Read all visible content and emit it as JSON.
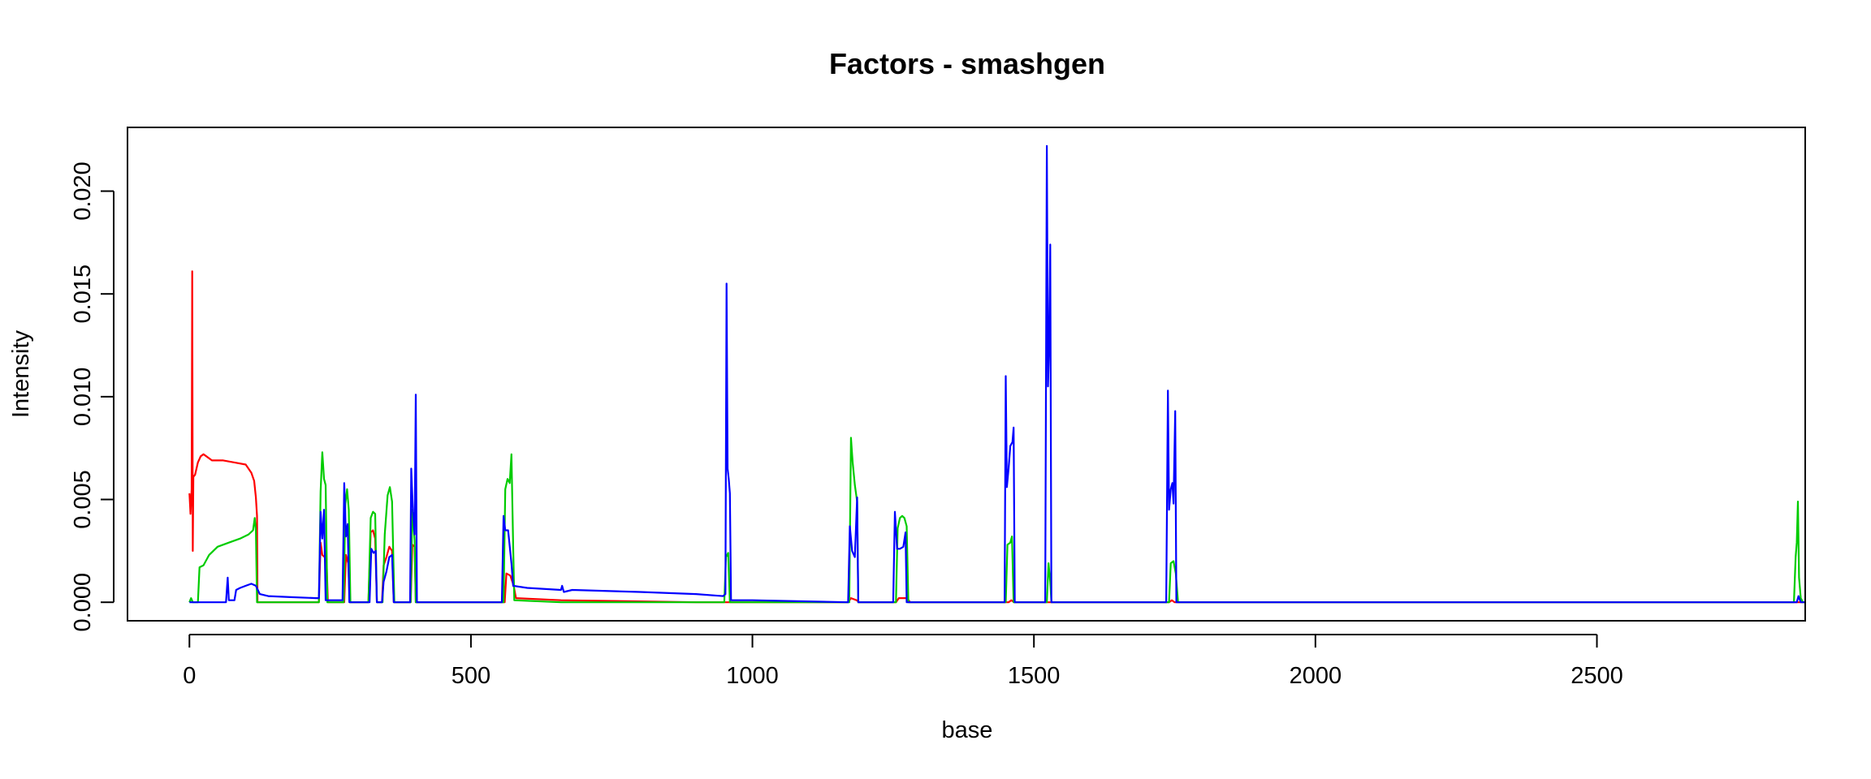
{
  "chart_data": {
    "type": "line",
    "title": "Factors - smashgen",
    "xlabel": "base",
    "ylabel": "Intensity",
    "xlim": [
      -110,
      2870
    ],
    "ylim": [
      -0.0009,
      0.0231
    ],
    "xticks": [
      0,
      500,
      1000,
      1500,
      2000,
      2500
    ],
    "xtick_labels": [
      "0",
      "500",
      "1000",
      "1500",
      "2000",
      "2500"
    ],
    "yticks": [
      0.0,
      0.005,
      0.01,
      0.015,
      0.02
    ],
    "ytick_labels": [
      "0.000",
      "0.005",
      "0.010",
      "0.015",
      "0.020"
    ],
    "grid": false,
    "legend": "none",
    "series": [
      {
        "color": "#ff0000",
        "points": [
          [
            0,
            0.0053
          ],
          [
            2,
            0.0043
          ],
          [
            4,
            0.0055
          ],
          [
            5,
            0.0161
          ],
          [
            6,
            0.0025
          ],
          [
            7,
            0.0061
          ],
          [
            10,
            0.0062
          ],
          [
            15,
            0.0068
          ],
          [
            20,
            0.0071
          ],
          [
            25,
            0.0072
          ],
          [
            30,
            0.0071
          ],
          [
            40,
            0.0069
          ],
          [
            60,
            0.0069
          ],
          [
            80,
            0.0068
          ],
          [
            100,
            0.0067
          ],
          [
            110,
            0.0063
          ],
          [
            115,
            0.0059
          ],
          [
            118,
            0.0051
          ],
          [
            120,
            0.0042
          ],
          [
            121,
            0.0
          ],
          [
            230,
            0.0
          ],
          [
            233,
            0.0029
          ],
          [
            236,
            0.0023
          ],
          [
            240,
            0.0022
          ],
          [
            243,
            0.0025
          ],
          [
            246,
            0.0
          ],
          [
            275,
            0.0
          ],
          [
            278,
            0.0023
          ],
          [
            282,
            0.0019
          ],
          [
            285,
            0.0
          ],
          [
            318,
            0.0
          ],
          [
            322,
            0.0034
          ],
          [
            326,
            0.0035
          ],
          [
            330,
            0.0031
          ],
          [
            333,
            0.0
          ],
          [
            342,
            0.0
          ],
          [
            345,
            0.0018
          ],
          [
            350,
            0.0022
          ],
          [
            355,
            0.0027
          ],
          [
            360,
            0.0025
          ],
          [
            363,
            0.0
          ],
          [
            393,
            0.0
          ],
          [
            396,
            0.0028
          ],
          [
            400,
            0.0027
          ],
          [
            402,
            0.0
          ],
          [
            560,
            0.0
          ],
          [
            563,
            0.0014
          ],
          [
            570,
            0.0013
          ],
          [
            576,
            0.0008
          ],
          [
            580,
            0.0002
          ],
          [
            660,
            0.0001
          ],
          [
            900,
            0.0
          ],
          [
            1170,
            0.0
          ],
          [
            1175,
            0.0002
          ],
          [
            1185,
            0.0001
          ],
          [
            1190,
            0.0
          ],
          [
            1255,
            0.0
          ],
          [
            1260,
            0.0002
          ],
          [
            1275,
            0.0002
          ],
          [
            1280,
            0.0
          ],
          [
            1455,
            0.0
          ],
          [
            1460,
            0.0001
          ],
          [
            1465,
            0.0
          ],
          [
            1740,
            0.0
          ],
          [
            1745,
            0.0001
          ],
          [
            1750,
            0.0
          ],
          [
            2870,
            0.0
          ]
        ]
      },
      {
        "color": "#00cc00",
        "points": [
          [
            0,
            0.0
          ],
          [
            3,
            0.0002
          ],
          [
            6,
            0.0
          ],
          [
            15,
            0.0
          ],
          [
            18,
            0.0017
          ],
          [
            25,
            0.0018
          ],
          [
            35,
            0.0023
          ],
          [
            50,
            0.0027
          ],
          [
            70,
            0.0029
          ],
          [
            90,
            0.0031
          ],
          [
            105,
            0.0033
          ],
          [
            113,
            0.0035
          ],
          [
            116,
            0.0041
          ],
          [
            118,
            0.0035
          ],
          [
            120,
            0.0
          ],
          [
            230,
            0.0
          ],
          [
            233,
            0.0054
          ],
          [
            236,
            0.0073
          ],
          [
            239,
            0.006
          ],
          [
            242,
            0.0057
          ],
          [
            245,
            0.0
          ],
          [
            274,
            0.0
          ],
          [
            277,
            0.0048
          ],
          [
            280,
            0.0055
          ],
          [
            283,
            0.0045
          ],
          [
            286,
            0.0
          ],
          [
            318,
            0.0
          ],
          [
            322,
            0.0041
          ],
          [
            326,
            0.0044
          ],
          [
            330,
            0.0043
          ],
          [
            333,
            0.0
          ],
          [
            343,
            0.0
          ],
          [
            347,
            0.0033
          ],
          [
            352,
            0.0052
          ],
          [
            356,
            0.0056
          ],
          [
            360,
            0.0049
          ],
          [
            364,
            0.0
          ],
          [
            393,
            0.0
          ],
          [
            396,
            0.0045
          ],
          [
            400,
            0.003
          ],
          [
            402,
            0.0
          ],
          [
            558,
            0.0
          ],
          [
            561,
            0.0055
          ],
          [
            565,
            0.006
          ],
          [
            569,
            0.0058
          ],
          [
            572,
            0.0072
          ],
          [
            575,
            0.0028
          ],
          [
            577,
            0.0001
          ],
          [
            660,
            0.0
          ],
          [
            950,
            0.0
          ],
          [
            953,
            0.0022
          ],
          [
            957,
            0.0024
          ],
          [
            960,
            0.0
          ],
          [
            1172,
            0.0
          ],
          [
            1175,
            0.008
          ],
          [
            1178,
            0.0068
          ],
          [
            1182,
            0.0057
          ],
          [
            1186,
            0.0049
          ],
          [
            1188,
            0.0
          ],
          [
            1255,
            0.0
          ],
          [
            1258,
            0.0036
          ],
          [
            1262,
            0.0041
          ],
          [
            1266,
            0.0042
          ],
          [
            1270,
            0.0041
          ],
          [
            1274,
            0.0037
          ],
          [
            1277,
            0.0
          ],
          [
            1450,
            0.0
          ],
          [
            1453,
            0.0028
          ],
          [
            1458,
            0.0029
          ],
          [
            1461,
            0.0032
          ],
          [
            1464,
            0.0
          ],
          [
            1523,
            0.0
          ],
          [
            1526,
            0.0019
          ],
          [
            1529,
            0.001
          ],
          [
            1531,
            0.0
          ],
          [
            1740,
            0.0
          ],
          [
            1743,
            0.0019
          ],
          [
            1748,
            0.002
          ],
          [
            1752,
            0.0014
          ],
          [
            1756,
            0.0
          ],
          [
            2850,
            0.0
          ],
          [
            2853,
            0.0022
          ],
          [
            2855,
            0.0029
          ],
          [
            2857,
            0.0049
          ],
          [
            2859,
            0.0012
          ],
          [
            2862,
            0.0002
          ],
          [
            2866,
            0.0
          ],
          [
            2870,
            0.0
          ]
        ]
      },
      {
        "color": "#0000ff",
        "points": [
          [
            0,
            0.0
          ],
          [
            65,
            0.0
          ],
          [
            68,
            0.0012
          ],
          [
            70,
            0.0001
          ],
          [
            80,
            0.0001
          ],
          [
            83,
            0.0006
          ],
          [
            90,
            0.0007
          ],
          [
            100,
            0.0008
          ],
          [
            110,
            0.0009
          ],
          [
            118,
            0.0008
          ],
          [
            125,
            0.0004
          ],
          [
            140,
            0.0003
          ],
          [
            180,
            0.00025
          ],
          [
            225,
            0.0002
          ],
          [
            230,
            0.0002
          ],
          [
            233,
            0.0044
          ],
          [
            236,
            0.0031
          ],
          [
            239,
            0.0045
          ],
          [
            242,
            0.0001
          ],
          [
            272,
            0.0001
          ],
          [
            275,
            0.0058
          ],
          [
            278,
            0.0032
          ],
          [
            281,
            0.0038
          ],
          [
            284,
            0.0
          ],
          [
            320,
            0.0
          ],
          [
            323,
            0.0026
          ],
          [
            327,
            0.0024
          ],
          [
            331,
            0.0025
          ],
          [
            333,
            0.0
          ],
          [
            342,
            0.0
          ],
          [
            345,
            0.001
          ],
          [
            350,
            0.0015
          ],
          [
            355,
            0.0022
          ],
          [
            360,
            0.0023
          ],
          [
            363,
            0.0
          ],
          [
            392,
            0.0
          ],
          [
            394,
            0.0065
          ],
          [
            397,
            0.0044
          ],
          [
            400,
            0.0033
          ],
          [
            402,
            0.0101
          ],
          [
            404,
            0.0
          ],
          [
            430,
            0.0
          ],
          [
            555,
            0.0
          ],
          [
            558,
            0.0042
          ],
          [
            561,
            0.0035
          ],
          [
            566,
            0.0035
          ],
          [
            572,
            0.0019
          ],
          [
            575,
            0.0008
          ],
          [
            600,
            0.0007
          ],
          [
            660,
            0.0006
          ],
          [
            662,
            0.0008
          ],
          [
            665,
            0.0005
          ],
          [
            680,
            0.0006
          ],
          [
            800,
            0.0005
          ],
          [
            900,
            0.0004
          ],
          [
            948,
            0.0003
          ],
          [
            952,
            0.0004
          ],
          [
            954,
            0.0155
          ],
          [
            956,
            0.0065
          ],
          [
            958,
            0.006
          ],
          [
            960,
            0.0053
          ],
          [
            962,
            0.0001
          ],
          [
            1000,
            0.0001
          ],
          [
            1170,
            0.0
          ],
          [
            1173,
            0.0037
          ],
          [
            1177,
            0.0025
          ],
          [
            1182,
            0.0022
          ],
          [
            1186,
            0.0051
          ],
          [
            1188,
            0.0
          ],
          [
            1250,
            0.0
          ],
          [
            1253,
            0.0044
          ],
          [
            1257,
            0.0026
          ],
          [
            1262,
            0.0026
          ],
          [
            1268,
            0.0027
          ],
          [
            1272,
            0.0034
          ],
          [
            1274,
            0.0
          ],
          [
            1448,
            0.0
          ],
          [
            1450,
            0.011
          ],
          [
            1452,
            0.0056
          ],
          [
            1455,
            0.0065
          ],
          [
            1458,
            0.0076
          ],
          [
            1462,
            0.0078
          ],
          [
            1464,
            0.0085
          ],
          [
            1466,
            0.0
          ],
          [
            1520,
            0.0
          ],
          [
            1523,
            0.0222
          ],
          [
            1525,
            0.0105
          ],
          [
            1527,
            0.0125
          ],
          [
            1529,
            0.0174
          ],
          [
            1531,
            0.0
          ],
          [
            1735,
            0.0
          ],
          [
            1738,
            0.0103
          ],
          [
            1740,
            0.0045
          ],
          [
            1743,
            0.0055
          ],
          [
            1746,
            0.0058
          ],
          [
            1748,
            0.0048
          ],
          [
            1751,
            0.0093
          ],
          [
            1753,
            0.0
          ],
          [
            2855,
            0.0
          ],
          [
            2858,
            0.0003
          ],
          [
            2862,
            0.0
          ],
          [
            2870,
            0.0
          ]
        ]
      }
    ]
  }
}
